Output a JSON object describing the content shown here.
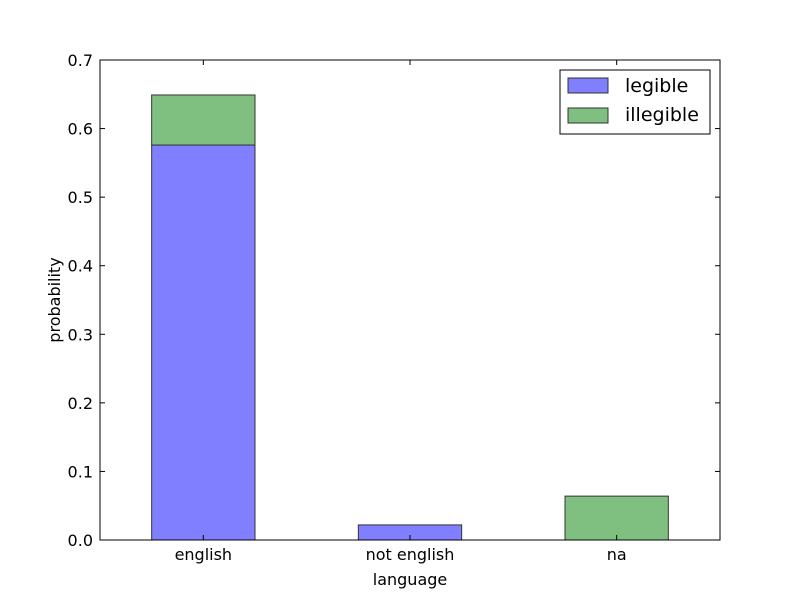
{
  "chart_data": {
    "type": "bar",
    "stacked": true,
    "categories": [
      "english",
      "not english",
      "na"
    ],
    "series": [
      {
        "name": "legible",
        "values": [
          0.576,
          0.022,
          0.0
        ],
        "color": "#7f7fff"
      },
      {
        "name": "illegible",
        "values": [
          0.073,
          0.0,
          0.064
        ],
        "color": "#7fbf7f"
      }
    ],
    "xlabel": "language",
    "ylabel": "probability",
    "ylim": [
      0,
      0.7
    ],
    "yticks": [
      "0.0",
      "0.1",
      "0.2",
      "0.3",
      "0.4",
      "0.5",
      "0.6",
      "0.7"
    ],
    "grid": false,
    "legend_position": "top-right"
  }
}
